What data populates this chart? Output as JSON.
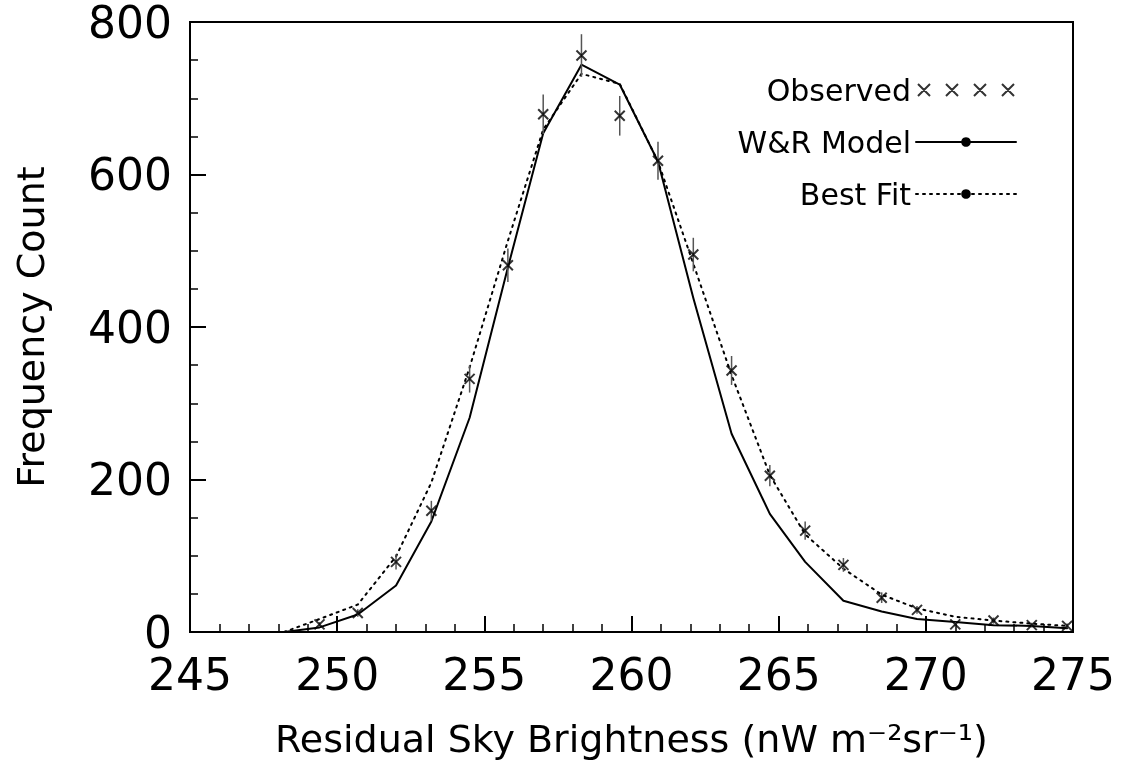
{
  "chart_data": {
    "type": "line",
    "xlabel": "Residual Sky Brightness (nW m⁻²sr⁻¹)",
    "ylabel": "Frequency Count",
    "x": [
      248.2,
      249.4,
      250.7,
      252.0,
      253.2,
      254.5,
      255.8,
      257.0,
      258.3,
      259.6,
      260.9,
      262.1,
      263.4,
      264.7,
      265.9,
      267.2,
      268.5,
      269.7,
      271.0,
      272.3,
      273.6,
      274.8
    ],
    "series": [
      {
        "name": "Observed",
        "type": "scatter",
        "marker": "cross",
        "color": "#000000",
        "values": [
          null,
          10,
          25,
          92,
          159,
          332,
          481,
          679,
          756,
          677,
          618,
          495,
          343,
          205,
          133,
          88,
          45,
          29,
          10,
          15,
          9,
          8
        ],
        "errors": [
          null,
          3,
          5,
          10,
          13,
          18,
          22,
          26,
          28,
          26,
          25,
          22,
          19,
          14,
          12,
          9,
          7,
          5,
          3,
          4,
          3,
          3
        ]
      },
      {
        "name": "W&R Model",
        "marker": "none",
        "line_style": "solid",
        "color": "#000000",
        "values": [
          0,
          6,
          23,
          61,
          145,
          281,
          478,
          654,
          744,
          718,
          617,
          438,
          260,
          155,
          92,
          41,
          27,
          17,
          13,
          9,
          8,
          5
        ]
      },
      {
        "name": "Best Fit",
        "marker": "none",
        "line_style": "dotted",
        "color": "#000000",
        "values": [
          0,
          17,
          36,
          99,
          196,
          347,
          513,
          659,
          732,
          719,
          617,
          483,
          337,
          206,
          128,
          83,
          49,
          31,
          20,
          15,
          11,
          8
        ]
      }
    ],
    "xlim": [
      245,
      275
    ],
    "xticks": [
      245,
      250,
      255,
      260,
      265,
      270,
      275
    ],
    "ylim": [
      0,
      800
    ],
    "yticks": [
      0,
      200,
      400,
      600,
      800
    ],
    "grid": false,
    "legend": "top right"
  }
}
